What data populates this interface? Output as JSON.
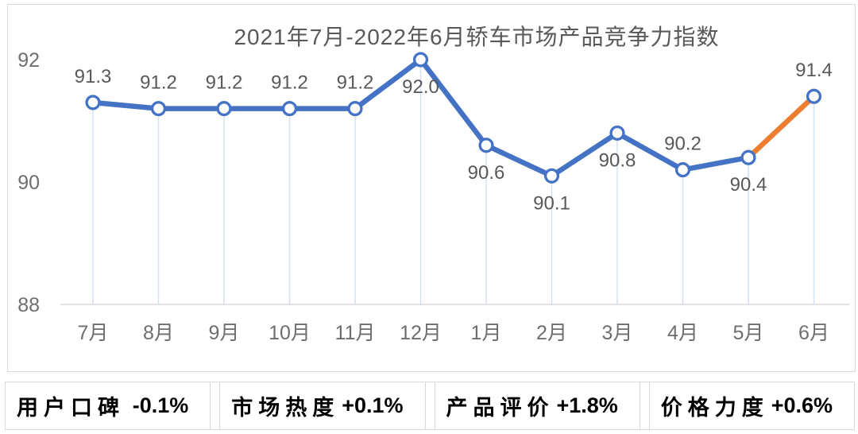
{
  "title": "2021年7月-2022年6月轿车市场产品竞争力指数",
  "chart_data": {
    "type": "line",
    "title": "2021年7月-2022年6月轿车市场产品竞争力指数",
    "categories": [
      "7月",
      "8月",
      "9月",
      "10月",
      "11月",
      "12月",
      "1月",
      "2月",
      "3月",
      "4月",
      "5月",
      "6月"
    ],
    "values": [
      91.3,
      91.2,
      91.2,
      91.2,
      91.2,
      92.0,
      90.6,
      90.1,
      90.8,
      90.2,
      90.4,
      91.4
    ],
    "label_positions": [
      "above",
      "above",
      "above",
      "above",
      "above",
      "below",
      "below",
      "below",
      "below",
      "above",
      "below",
      "above"
    ],
    "y_ticks": [
      88,
      90,
      92
    ],
    "ylim": [
      88,
      92.5
    ],
    "xlabel": "",
    "ylabel": "",
    "grid": "off",
    "legend": "none",
    "marker": "open-circle",
    "series_color": "#4472C4",
    "highlight_color": "#ED7D31",
    "highlight_segment": {
      "from": "5月",
      "to": "6月",
      "from_index": 10,
      "to_index": 11
    },
    "dropline_color": "#D3DFF3",
    "axis_line_color": "#D9D9D9",
    "axis_text_color": "#6e6e6e",
    "data_label_color": "#595959"
  },
  "stats": [
    {
      "label": "用户口碑",
      "value": "-0.1%"
    },
    {
      "label": "市场热度",
      "value": "+0.1%"
    },
    {
      "label": "产品评价",
      "value": "+1.8%"
    },
    {
      "label": "价格力度",
      "value": "+0.6%"
    }
  ]
}
